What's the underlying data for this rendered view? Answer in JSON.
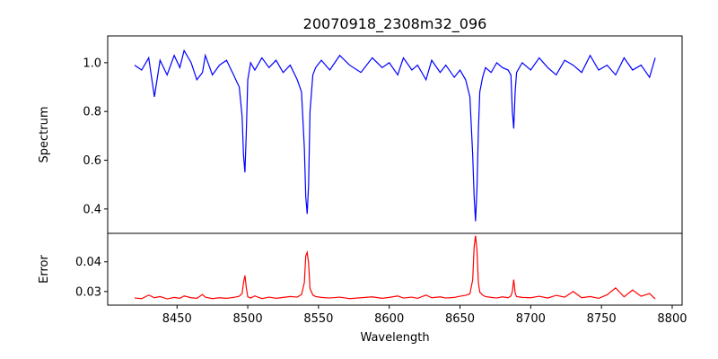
{
  "chart_data": {
    "type": "line",
    "title": "20070918_2308m32_096",
    "xlabel": "Wavelength",
    "xlim": [
      8401,
      8807
    ],
    "x_ticks": [
      8450,
      8500,
      8550,
      8600,
      8650,
      8700,
      8750,
      8800
    ],
    "x_tick_labels": [
      "8450",
      "8500",
      "8550",
      "8600",
      "8650",
      "8700",
      "8750",
      "8800"
    ],
    "grid": false,
    "panels": [
      {
        "name": "spectrum",
        "ylabel": "Spectrum",
        "ylim": [
          0.3,
          1.11
        ],
        "y_ticks": [
          0.4,
          0.6,
          0.8,
          1.0
        ],
        "y_tick_labels": [
          "0.4",
          "0.6",
          "0.8",
          "1.0"
        ],
        "color": "#0000ff",
        "series": [
          {
            "x": [
              8420,
              8425,
              8430,
              8434,
              8438,
              8443,
              8448,
              8452,
              8455,
              8460,
              8464,
              8468,
              8470,
              8475,
              8480,
              8485,
              8490,
              8494,
              8496,
              8497,
              8498,
              8499,
              8500,
              8502,
              8505,
              8510,
              8515,
              8520,
              8525,
              8530,
              8535,
              8538,
              8540,
              8541,
              8542,
              8543,
              8544,
              8546,
              8548,
              8552,
              8558,
              8565,
              8572,
              8580,
              8588,
              8595,
              8600,
              8606,
              8610,
              8616,
              8620,
              8626,
              8630,
              8636,
              8640,
              8646,
              8650,
              8654,
              8657,
              8659,
              8660,
              8661,
              8662,
              8663,
              8664,
              8666,
              8668,
              8672,
              8676,
              8680,
              8684,
              8686,
              8687,
              8688,
              8689,
              8690,
              8694,
              8700,
              8706,
              8712,
              8718,
              8724,
              8730,
              8736,
              8742,
              8748,
              8754,
              8760,
              8766,
              8772,
              8778,
              8784,
              8788
            ],
            "values": [
              0.99,
              0.97,
              1.02,
              0.86,
              1.01,
              0.95,
              1.03,
              0.98,
              1.05,
              1.0,
              0.93,
              0.96,
              1.03,
              0.95,
              0.99,
              1.01,
              0.95,
              0.9,
              0.78,
              0.62,
              0.55,
              0.72,
              0.93,
              1.0,
              0.97,
              1.02,
              0.98,
              1.01,
              0.96,
              0.99,
              0.93,
              0.88,
              0.65,
              0.45,
              0.38,
              0.5,
              0.8,
              0.95,
              0.98,
              1.01,
              0.97,
              1.03,
              0.99,
              0.96,
              1.02,
              0.98,
              1.0,
              0.95,
              1.02,
              0.97,
              0.99,
              0.93,
              1.01,
              0.96,
              0.99,
              0.94,
              0.97,
              0.93,
              0.86,
              0.62,
              0.45,
              0.35,
              0.48,
              0.72,
              0.88,
              0.94,
              0.98,
              0.96,
              1.0,
              0.98,
              0.97,
              0.95,
              0.8,
              0.73,
              0.88,
              0.96,
              1.0,
              0.97,
              1.02,
              0.98,
              0.95,
              1.01,
              0.99,
              0.96,
              1.03,
              0.97,
              0.99,
              0.95,
              1.02,
              0.97,
              0.99,
              0.94,
              1.02
            ]
          }
        ]
      },
      {
        "name": "error",
        "ylabel": "Error",
        "ylim": [
          0.0254,
          0.0496
        ],
        "y_ticks": [
          0.03,
          0.04
        ],
        "y_tick_labels": [
          "0.03",
          "0.04"
        ],
        "color": "#ff0000",
        "series": [
          {
            "x": [
              8420,
              8425,
              8430,
              8434,
              8438,
              8443,
              8448,
              8452,
              8455,
              8460,
              8464,
              8468,
              8470,
              8475,
              8480,
              8485,
              8490,
              8494,
              8496,
              8497,
              8498,
              8499,
              8500,
              8502,
              8505,
              8510,
              8515,
              8520,
              8525,
              8530,
              8535,
              8538,
              8540,
              8541,
              8542,
              8543,
              8544,
              8546,
              8548,
              8552,
              8558,
              8565,
              8572,
              8580,
              8588,
              8595,
              8600,
              8606,
              8610,
              8616,
              8620,
              8626,
              8630,
              8636,
              8640,
              8646,
              8650,
              8654,
              8657,
              8659,
              8660,
              8661,
              8662,
              8663,
              8664,
              8666,
              8668,
              8672,
              8676,
              8680,
              8684,
              8686,
              8687,
              8688,
              8689,
              8690,
              8694,
              8700,
              8706,
              8712,
              8718,
              8724,
              8730,
              8736,
              8742,
              8748,
              8754,
              8760,
              8766,
              8772,
              8778,
              8784,
              8788
            ],
            "values": [
              0.0278,
              0.0276,
              0.0288,
              0.0279,
              0.0283,
              0.0275,
              0.028,
              0.0277,
              0.0285,
              0.0279,
              0.0277,
              0.029,
              0.0281,
              0.0276,
              0.0279,
              0.0277,
              0.028,
              0.0284,
              0.0293,
              0.033,
              0.0354,
              0.0312,
              0.0282,
              0.0278,
              0.0285,
              0.0276,
              0.0281,
              0.0277,
              0.028,
              0.0283,
              0.0281,
              0.029,
              0.033,
              0.042,
              0.0432,
              0.0395,
              0.031,
              0.0288,
              0.0283,
              0.028,
              0.0278,
              0.0281,
              0.0276,
              0.0279,
              0.0282,
              0.0277,
              0.028,
              0.0285,
              0.0278,
              0.0281,
              0.0277,
              0.0288,
              0.0279,
              0.0282,
              0.0278,
              0.028,
              0.0284,
              0.0287,
              0.0292,
              0.034,
              0.045,
              0.0488,
              0.044,
              0.033,
              0.0298,
              0.0288,
              0.0283,
              0.028,
              0.0278,
              0.0282,
              0.0279,
              0.0285,
              0.03,
              0.034,
              0.0295,
              0.0283,
              0.028,
              0.0279,
              0.0284,
              0.0278,
              0.0287,
              0.0281,
              0.03,
              0.0279,
              0.0283,
              0.0277,
              0.0289,
              0.0312,
              0.0282,
              0.0305,
              0.0284,
              0.0293,
              0.0275
            ]
          }
        ]
      }
    ]
  }
}
